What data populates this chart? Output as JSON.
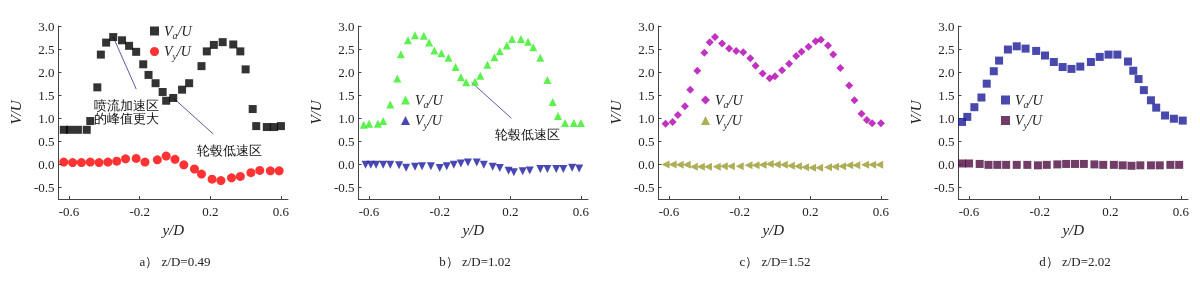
{
  "chart_data": [
    {
      "type": "scatter",
      "title": "a） z/D=0.49",
      "xlabel": "y/D",
      "ylabel": "V/U",
      "legend": "top",
      "grid": false,
      "xlim": [
        -0.66,
        0.64
      ],
      "xticks": [
        -0.6,
        -0.2,
        0.2,
        0.6
      ],
      "ylim": [
        -0.75,
        3.0
      ],
      "yticks": [
        {
          "value": -0.5,
          "label": "-0.5"
        },
        {
          "value": 0,
          "label": "0.0"
        },
        {
          "value": 0.5,
          "label": "0.5"
        },
        {
          "value": 1,
          "label": "1.0"
        },
        {
          "value": 1.5,
          "label": "1.5"
        },
        {
          "value": 2,
          "label": "2.0"
        },
        {
          "value": 2.5,
          "label": "2.5"
        },
        {
          "value": 3,
          "label": "3.0"
        }
      ],
      "annotations": [
        {
          "text": "喷流加速区的峰值更大",
          "x": -0.35,
          "y": 2.76
        },
        {
          "text": "轮毂低速区",
          "x": -0.01,
          "y": 1.44
        }
      ],
      "series": [
        {
          "name": "V$_{a}$/U",
          "color": "#000000",
          "marker": "square",
          "x": [
            -0.63,
            -0.595,
            -0.55,
            -0.5,
            -0.48,
            -0.44,
            -0.42,
            -0.39,
            -0.35,
            -0.3,
            -0.26,
            -0.22,
            -0.18,
            -0.15,
            -0.11,
            -0.07,
            -0.05,
            -0.01,
            0.04,
            0.08,
            0.15,
            0.18,
            0.22,
            0.27,
            0.33,
            0.37,
            0.4,
            0.44,
            0.46,
            0.52,
            0.56,
            0.6
          ],
          "values": [
            0.75,
            0.75,
            0.75,
            0.75,
            0.94,
            1.67,
            2.38,
            2.64,
            2.76,
            2.69,
            2.57,
            2.44,
            2.17,
            1.94,
            1.76,
            1.57,
            1.38,
            1.44,
            1.62,
            1.76,
            2.13,
            2.45,
            2.59,
            2.65,
            2.6,
            2.45,
            2.06,
            1.2,
            0.83,
            0.81,
            0.81,
            0.83
          ]
        },
        {
          "name": "V$_{y}$/U",
          "color": "#ff0000",
          "marker": "circle",
          "x": [
            -0.63,
            -0.58,
            -0.53,
            -0.48,
            -0.43,
            -0.38,
            -0.33,
            -0.28,
            -0.22,
            -0.17,
            -0.1,
            -0.05,
            0.0,
            0.05,
            0.11,
            0.15,
            0.21,
            0.26,
            0.32,
            0.37,
            0.43,
            0.48,
            0.54,
            0.59
          ],
          "values": [
            0.05,
            0.04,
            0.04,
            0.05,
            0.04,
            0.05,
            0.07,
            0.12,
            0.13,
            0.05,
            0.1,
            0.18,
            0.11,
            -0.01,
            -0.1,
            -0.21,
            -0.32,
            -0.35,
            -0.29,
            -0.26,
            -0.18,
            -0.13,
            -0.14,
            -0.14
          ]
        }
      ]
    },
    {
      "type": "scatter",
      "title": "b） z/D=1.02",
      "xlabel": "y/D",
      "ylabel": "V/U",
      "legend": "left",
      "grid": false,
      "xlim": [
        -0.66,
        0.64
      ],
      "xticks": [
        -0.6,
        -0.2,
        0.2,
        0.6
      ],
      "ylim": [
        -0.75,
        3.0
      ],
      "yticks": [
        {
          "value": -0.5,
          "label": "-0.5"
        },
        {
          "value": 0,
          "label": "0.0"
        },
        {
          "value": 0.5,
          "label": "0.5"
        },
        {
          "value": 1,
          "label": "1.0"
        },
        {
          "value": 1.5,
          "label": "1.5"
        },
        {
          "value": 2,
          "label": "2.0"
        },
        {
          "value": 2.5,
          "label": "2.5"
        },
        {
          "value": 3,
          "label": "3.0"
        }
      ],
      "annotations": [
        {
          "text": "轮毂低速区",
          "x": -0.02,
          "y": 1.78
        }
      ],
      "series": [
        {
          "name": "V$_{a}$/U",
          "color": "#33ee22",
          "marker": "triangle",
          "x": [
            -0.63,
            -0.6,
            -0.55,
            -0.52,
            -0.48,
            -0.44,
            -0.42,
            -0.38,
            -0.34,
            -0.29,
            -0.26,
            -0.23,
            -0.19,
            -0.15,
            -0.11,
            -0.08,
            -0.05,
            0.0,
            0.03,
            0.07,
            0.11,
            0.14,
            0.18,
            0.21,
            0.26,
            0.3,
            0.33,
            0.37,
            0.41,
            0.44,
            0.47,
            0.51,
            0.56,
            0.6
          ],
          "values": [
            0.86,
            0.88,
            0.88,
            0.94,
            1.3,
            1.86,
            2.39,
            2.69,
            2.8,
            2.79,
            2.64,
            2.47,
            2.41,
            2.31,
            2.11,
            1.89,
            1.78,
            1.79,
            1.92,
            2.16,
            2.32,
            2.45,
            2.58,
            2.72,
            2.72,
            2.66,
            2.54,
            2.31,
            1.83,
            1.35,
            1.05,
            0.9,
            0.9,
            0.9
          ]
        },
        {
          "name": "V$_{y}$/U",
          "color": "#1a1aa0",
          "marker": "triangle-down",
          "x": [
            -0.62,
            -0.59,
            -0.56,
            -0.52,
            -0.48,
            -0.43,
            -0.39,
            -0.34,
            -0.3,
            -0.25,
            -0.2,
            -0.16,
            -0.12,
            -0.08,
            -0.04,
            0.01,
            0.05,
            0.1,
            0.14,
            0.19,
            0.22,
            0.27,
            0.31,
            0.37,
            0.41,
            0.46,
            0.5,
            0.55,
            0.59
          ],
          "values": [
            -0.01,
            -0.01,
            -0.01,
            -0.01,
            -0.01,
            -0.02,
            -0.07,
            -0.05,
            -0.04,
            -0.04,
            -0.08,
            -0.04,
            -0.01,
            0.02,
            0.04,
            0.04,
            -0.01,
            -0.05,
            -0.08,
            -0.14,
            -0.17,
            -0.15,
            -0.13,
            -0.1,
            -0.1,
            -0.1,
            -0.1,
            -0.07,
            -0.09
          ]
        }
      ]
    },
    {
      "type": "scatter",
      "title": "c） z/D=1.52",
      "xlabel": "y/D",
      "ylabel": "V/U",
      "legend": "left",
      "grid": false,
      "xlim": [
        -0.66,
        0.64
      ],
      "xticks": [
        -0.6,
        -0.2,
        0.2,
        0.6
      ],
      "ylim": [
        -0.75,
        3.0
      ],
      "yticks": [
        {
          "value": -0.5,
          "label": "-0.5"
        },
        {
          "value": 0,
          "label": "0.0"
        },
        {
          "value": 0.5,
          "label": "0.5"
        },
        {
          "value": 1,
          "label": "1.0"
        },
        {
          "value": 1.5,
          "label": "1.5"
        },
        {
          "value": 2,
          "label": "2.0"
        },
        {
          "value": 2.5,
          "label": "2.5"
        },
        {
          "value": 3,
          "label": "3.0"
        }
      ],
      "series": [
        {
          "name": "V$_{a}$/U",
          "color": "#b000b0",
          "marker": "diamond",
          "x": [
            -0.62,
            -0.58,
            -0.55,
            -0.51,
            -0.48,
            -0.44,
            -0.4,
            -0.37,
            -0.34,
            -0.3,
            -0.26,
            -0.22,
            -0.18,
            -0.14,
            -0.11,
            -0.07,
            -0.03,
            0.0,
            0.04,
            0.08,
            0.12,
            0.15,
            0.19,
            0.23,
            0.26,
            0.3,
            0.33,
            0.37,
            0.42,
            0.45,
            0.49,
            0.52,
            0.55,
            0.6
          ],
          "values": [
            0.88,
            0.92,
            1.07,
            1.26,
            1.62,
            2.03,
            2.42,
            2.65,
            2.76,
            2.62,
            2.51,
            2.46,
            2.43,
            2.3,
            2.14,
            1.97,
            1.87,
            1.91,
            2.04,
            2.18,
            2.35,
            2.44,
            2.55,
            2.67,
            2.7,
            2.58,
            2.38,
            2.09,
            1.71,
            1.39,
            1.1,
            0.96,
            0.89,
            0.89
          ]
        },
        {
          "name": "V$_{y}$/U",
          "color": "#9a9a30",
          "marker": "triangle-left",
          "x": [
            -0.62,
            -0.58,
            -0.54,
            -0.5,
            -0.46,
            -0.42,
            -0.38,
            -0.33,
            -0.29,
            -0.25,
            -0.2,
            -0.15,
            -0.11,
            -0.07,
            -0.03,
            0.01,
            0.05,
            0.09,
            0.13,
            0.17,
            0.21,
            0.25,
            0.3,
            0.34,
            0.38,
            0.42,
            0.46,
            0.51,
            0.55,
            0.59
          ],
          "values": [
            0.0,
            0.0,
            -0.01,
            -0.01,
            -0.05,
            -0.05,
            -0.05,
            -0.05,
            -0.04,
            -0.04,
            -0.04,
            -0.02,
            -0.02,
            -0.01,
            0.01,
            0.0,
            -0.01,
            -0.03,
            -0.04,
            -0.06,
            -0.07,
            -0.07,
            -0.06,
            -0.05,
            -0.04,
            -0.02,
            -0.02,
            -0.01,
            -0.01,
            -0.01
          ]
        }
      ]
    },
    {
      "type": "scatter",
      "title": "d） z/D=2.02",
      "xlabel": "y/D",
      "ylabel": "V/U",
      "legend": "left",
      "grid": false,
      "xlim": [
        -0.66,
        0.64
      ],
      "xticks": [
        -0.6,
        -0.2,
        0.2,
        0.6
      ],
      "ylim": [
        -0.75,
        3.0
      ],
      "yticks": [
        {
          "value": -0.5,
          "label": "-0.5"
        },
        {
          "value": 0,
          "label": "0.0"
        },
        {
          "value": 0.5,
          "label": "0.5"
        },
        {
          "value": 1,
          "label": "1.0"
        },
        {
          "value": 1.5,
          "label": "1.5"
        },
        {
          "value": 2,
          "label": "2.0"
        },
        {
          "value": 2.5,
          "label": "2.5"
        },
        {
          "value": 3,
          "label": "3.0"
        }
      ],
      "series": [
        {
          "name": "V$_{a}$/U",
          "color": "#1a1a99",
          "marker": "square",
          "x": [
            -0.64,
            -0.61,
            -0.57,
            -0.53,
            -0.5,
            -0.46,
            -0.43,
            -0.38,
            -0.33,
            -0.28,
            -0.22,
            -0.17,
            -0.12,
            -0.07,
            -0.02,
            0.03,
            0.09,
            0.14,
            0.19,
            0.24,
            0.3,
            0.33,
            0.36,
            0.39,
            0.43,
            0.46,
            0.51,
            0.56,
            0.61
          ],
          "values": [
            0.92,
            1.03,
            1.24,
            1.45,
            1.75,
            2.02,
            2.25,
            2.49,
            2.56,
            2.51,
            2.46,
            2.36,
            2.22,
            2.11,
            2.07,
            2.12,
            2.22,
            2.33,
            2.38,
            2.38,
            2.23,
            2.03,
            1.85,
            1.61,
            1.39,
            1.23,
            1.06,
            0.99,
            0.95
          ]
        },
        {
          "name": "V$_{y}$/U",
          "color": "#4d0d40",
          "marker": "square",
          "x": [
            -0.64,
            -0.6,
            -0.54,
            -0.49,
            -0.44,
            -0.39,
            -0.33,
            -0.27,
            -0.21,
            -0.16,
            -0.1,
            -0.05,
            0.0,
            0.05,
            0.11,
            0.16,
            0.22,
            0.27,
            0.32,
            0.37,
            0.43,
            0.48,
            0.54,
            0.59
          ],
          "values": [
            0.02,
            0.02,
            0.01,
            -0.01,
            -0.01,
            -0.01,
            -0.01,
            -0.01,
            -0.02,
            -0.01,
            0.0,
            0.01,
            0.01,
            0.01,
            0.0,
            -0.01,
            -0.01,
            -0.02,
            -0.03,
            -0.02,
            -0.02,
            -0.02,
            -0.01,
            -0.01
          ]
        }
      ]
    }
  ]
}
